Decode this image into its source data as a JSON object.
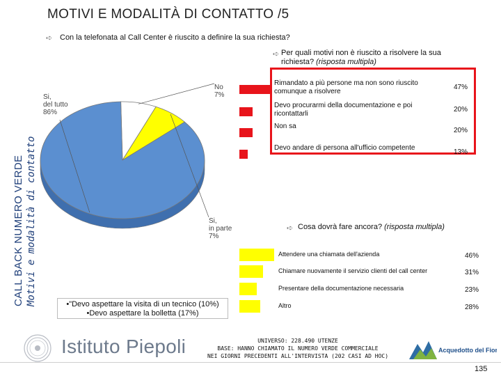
{
  "title": "MOTIVI E MODALITÀ DI CONTATTO /5",
  "side": {
    "line1": "CALL BACK NUMERO VERDE",
    "line2": "Motivi e modalità di contatto"
  },
  "question1": "Con la telefonata al Call Center è riuscito a definire la sua richiesta?",
  "question2": {
    "text": "Per quali motivi non è riuscito a risolvere la sua richiesta?",
    "note": "(risposta multipla)"
  },
  "question3": {
    "text": "Cosa dovrà fare ancora?",
    "note": "(risposta multipla)"
  },
  "chart_data": [
    {
      "type": "pie",
      "title": "",
      "slices": [
        {
          "label": "Si, del tutto",
          "value": 86,
          "display": "86%",
          "color": "#5b8fd0"
        },
        {
          "label": "Si, in parte",
          "value": 7,
          "display": "7%",
          "color": "#ffff00"
        },
        {
          "label": "No",
          "value": 7,
          "display": "7%",
          "color": "#ffffff"
        }
      ]
    },
    {
      "type": "bar",
      "title": "",
      "categories": [
        "Rimandato a più persone ma non sono riuscito comunque a risolvere",
        "Devo procurarmi della documentazione e poi ricontattarli",
        "Non sa",
        "Devo andare di persona all'ufficio competente"
      ],
      "values": [
        47,
        20,
        20,
        13
      ],
      "value_labels": [
        "47%",
        "20%",
        "20%",
        "13%"
      ],
      "color": "#e8141b"
    },
    {
      "type": "bar",
      "title": "",
      "categories": [
        "Attendere una chiamata dell'azienda",
        "Chiamare nuovamente il servizio clienti del call center",
        "Presentare della documentazione necessaria",
        "Altro"
      ],
      "values": [
        46,
        31,
        23,
        28
      ],
      "value_labels": [
        "46%",
        "31%",
        "23%",
        "28%"
      ],
      "color": "#ffff00"
    }
  ],
  "note": {
    "line1": "•\"Devo aspettare la visita di un tecnico (10%)",
    "line2": "•Devo aspettare la bolletta (17%)"
  },
  "universe": {
    "line1": "UNIVERSO: 228.490 UTENZE",
    "line2": "BASE: HANNO CHIAMATO IL NUMERO VERDE COMMERCIALE",
    "line3": "NEI GIORNI PRECEDENTI ALL'INTERVISTA (202 CASI AD HOC)"
  },
  "logo": {
    "text": "Istituto Piepoli",
    "partner": "Acquedotto del Fiora"
  },
  "page_number": "135"
}
